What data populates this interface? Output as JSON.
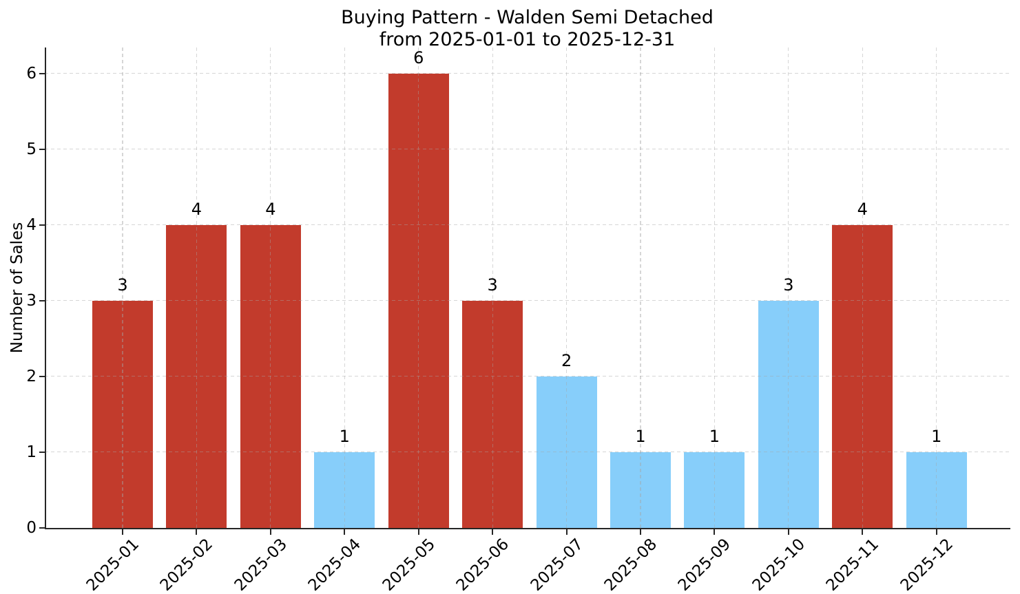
{
  "title": {
    "line1": "Buying Pattern - Walden Semi Detached",
    "line2": "from 2025-01-01 to 2025-12-31"
  },
  "chart_data": {
    "type": "bar",
    "title": "Buying Pattern - Walden Semi Detached from 2025-01-01 to 2025-12-31",
    "xlabel": "",
    "ylabel": "Number of Sales",
    "categories": [
      "2025-01",
      "2025-02",
      "2025-03",
      "2025-04",
      "2025-05",
      "2025-06",
      "2025-07",
      "2025-08",
      "2025-09",
      "2025-10",
      "2025-11",
      "2025-12"
    ],
    "values": [
      3,
      4,
      4,
      1,
      6,
      3,
      2,
      1,
      1,
      3,
      4,
      1
    ],
    "bar_value_labels": [
      "3",
      "4",
      "4",
      "1",
      "6",
      "3",
      "2",
      "1",
      "1",
      "3",
      "4",
      "1"
    ],
    "bar_colors": [
      "#c23b2c",
      "#c23b2c",
      "#c23b2c",
      "#87cefa",
      "#c23b2c",
      "#c23b2c",
      "#87cefa",
      "#87cefa",
      "#87cefa",
      "#87cefa",
      "#c23b2c",
      "#87cefa"
    ],
    "palette": {
      "red": "#c23b2c",
      "blue": "#87cefa",
      "axis": "#262626",
      "grid": "#d6d6d6"
    },
    "yticks": [
      0,
      1,
      2,
      3,
      4,
      5,
      6
    ],
    "ylim": [
      0,
      6.34
    ],
    "grid": true,
    "grid_style": "dashed",
    "legend_position": "none",
    "xtick_rotation": 45
  }
}
